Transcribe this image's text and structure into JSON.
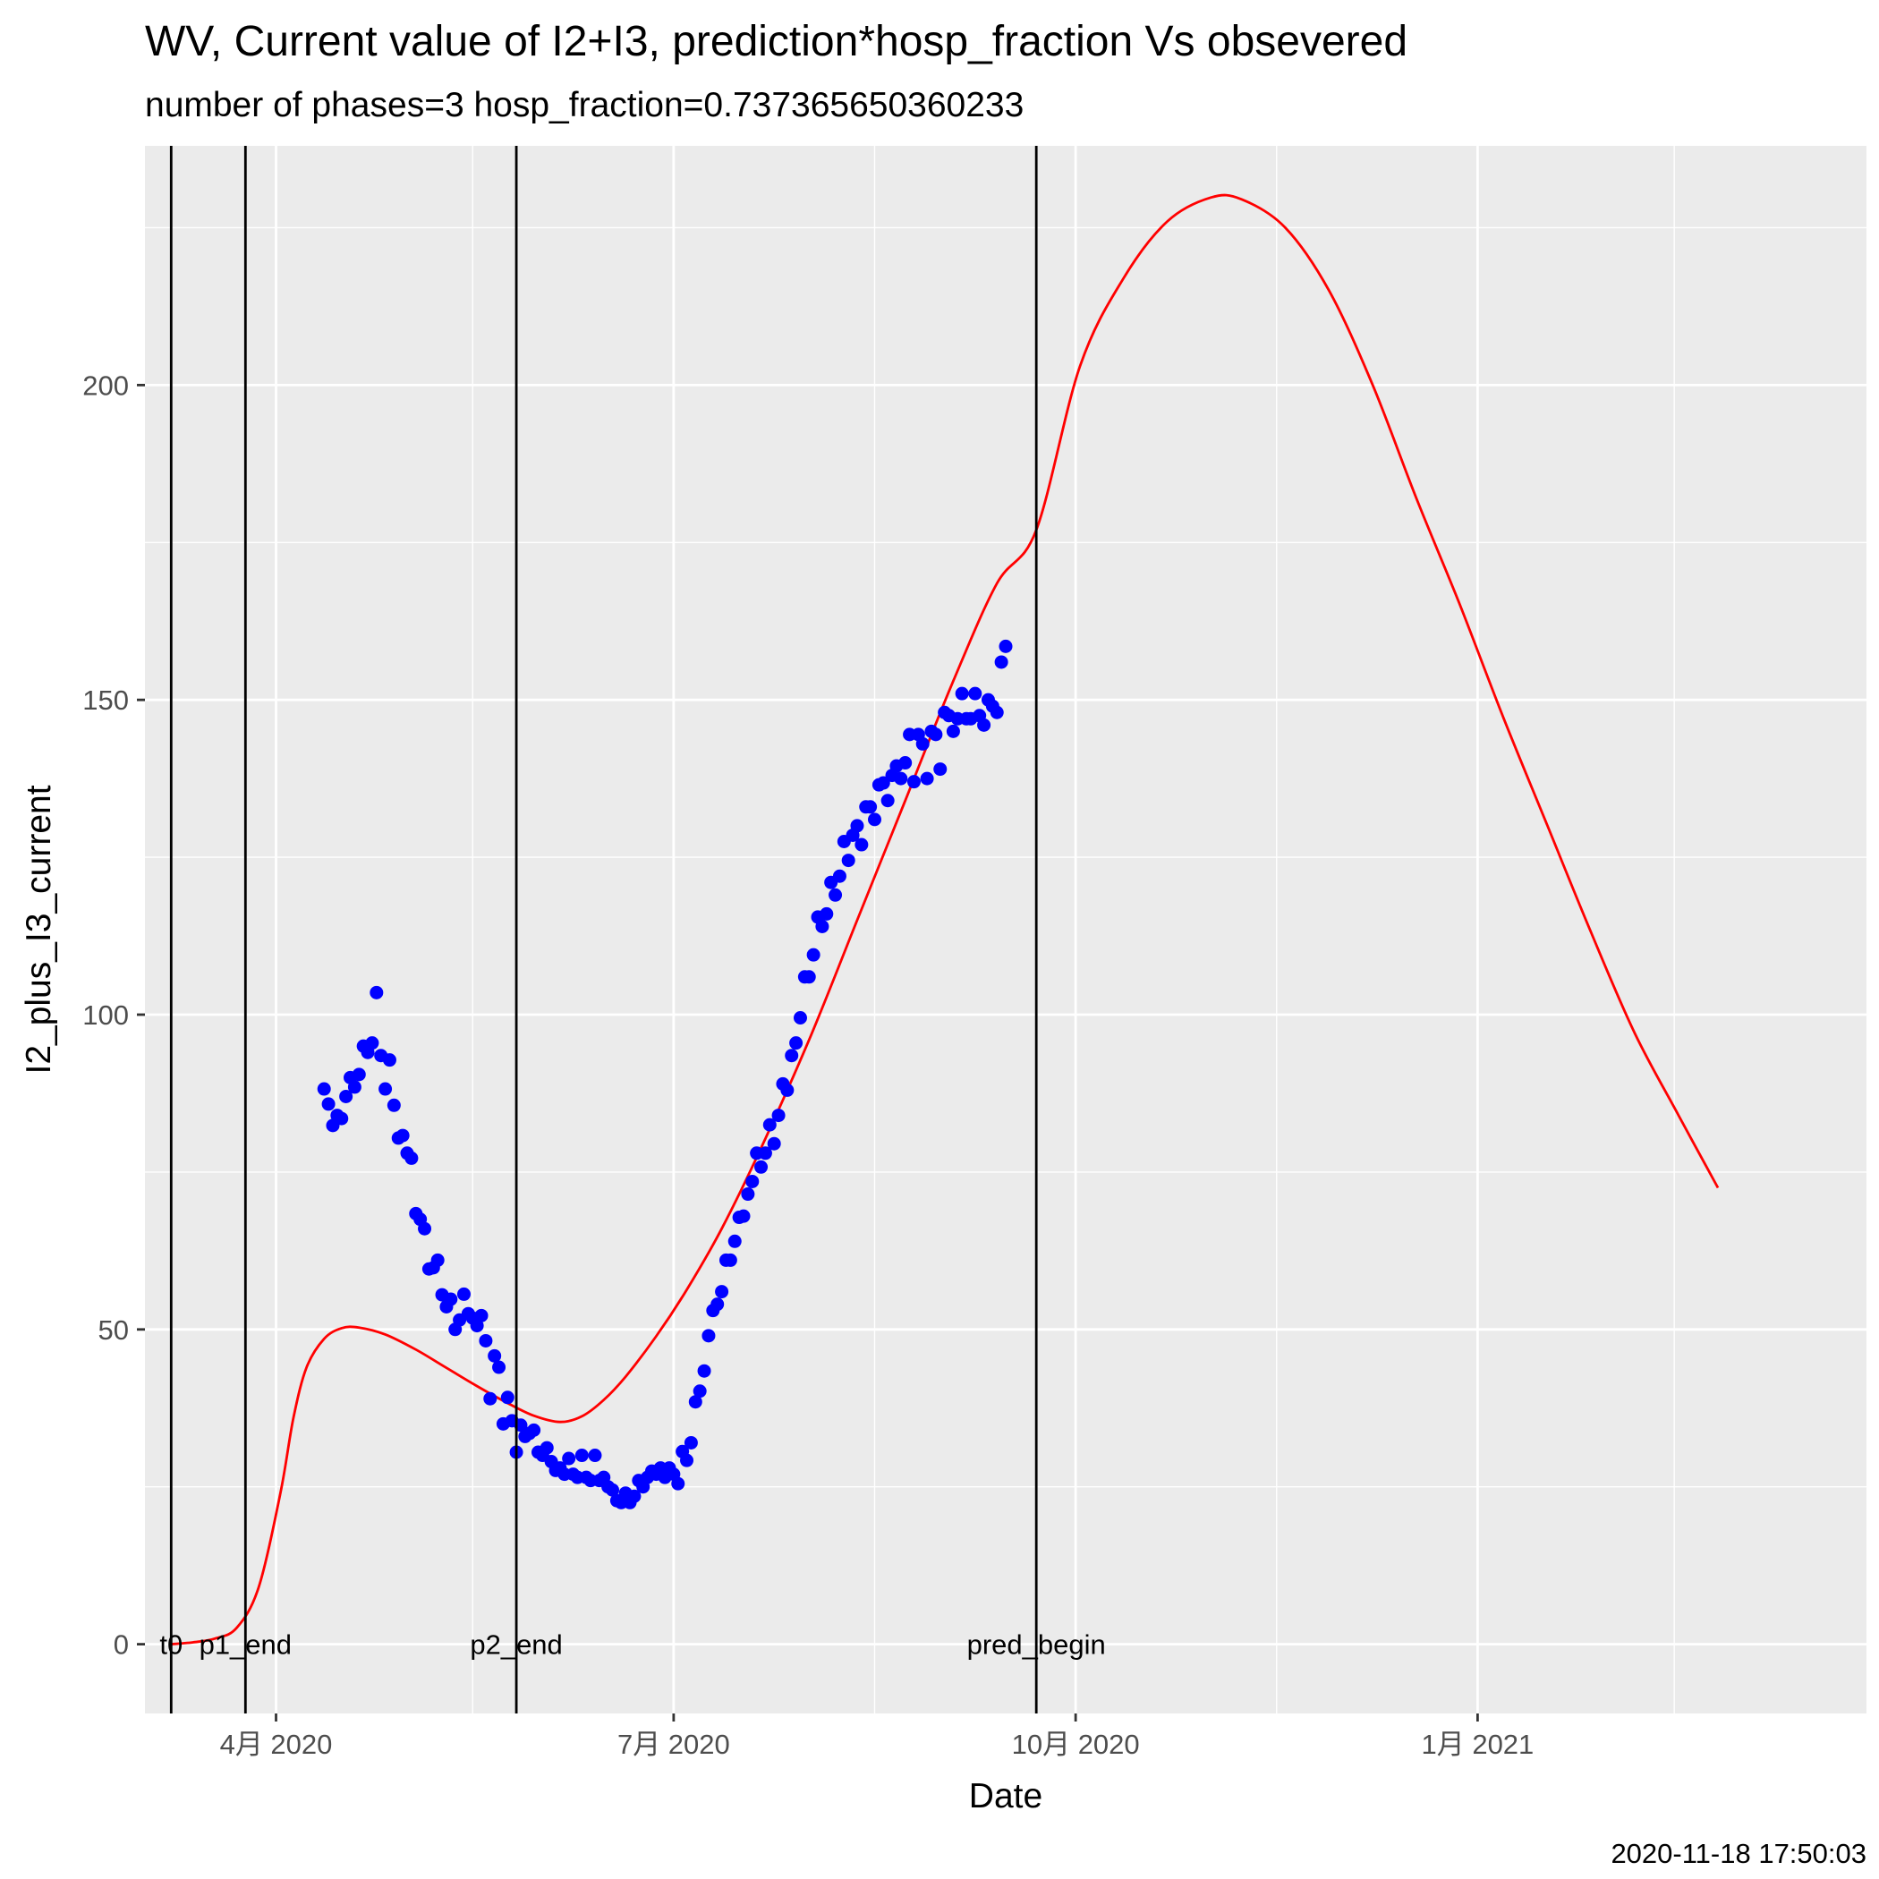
{
  "chart_data": {
    "type": "line",
    "title": "WV, Current value of I2+I3, prediction*hosp_fraction Vs obsevered",
    "subtitle": "number of phases=3   hosp_fraction=0.737365650360233",
    "xlabel": "Date",
    "ylabel": "I2_plus_I3_current",
    "caption": "2020-11-18 17:50:03",
    "xlim": [
      "2020-03-02",
      "2021-03-31"
    ],
    "ylim": [
      -11,
      238
    ],
    "x_ticks": [
      {
        "date": "2020-04-01",
        "label": "4月 2020"
      },
      {
        "date": "2020-07-01",
        "label": "7月 2020"
      },
      {
        "date": "2020-10-01",
        "label": "10月 2020"
      },
      {
        "date": "2021-01-01",
        "label": "1月 2021"
      }
    ],
    "x_minor_ticks": [
      "2020-02-15",
      "2020-05-16",
      "2020-08-16",
      "2020-11-16",
      "2021-02-15"
    ],
    "y_ticks": [
      0,
      50,
      100,
      150,
      200
    ],
    "y_minor_ticks": [
      25,
      75,
      125,
      175,
      225
    ],
    "grid": true,
    "vlines": [
      {
        "date": "2020-03-08",
        "label": "t0"
      },
      {
        "date": "2020-03-25",
        "label": "p1_end"
      },
      {
        "date": "2020-05-26",
        "label": "p2_end"
      },
      {
        "date": "2020-09-22",
        "label": "pred_begin"
      }
    ],
    "series": [
      {
        "kind": "line",
        "color": "#ff0000",
        "points": [
          [
            "2020-03-08",
            0.0
          ],
          [
            "2020-03-13",
            0.3
          ],
          [
            "2020-03-18",
            0.9
          ],
          [
            "2020-03-23",
            2.6
          ],
          [
            "2020-03-28",
            9
          ],
          [
            "2020-04-02",
            24
          ],
          [
            "2020-04-05",
            36
          ],
          [
            "2020-04-08",
            44
          ],
          [
            "2020-04-12",
            48.5
          ],
          [
            "2020-04-16",
            50.2
          ],
          [
            "2020-04-20",
            50.3
          ],
          [
            "2020-04-26",
            49.2
          ],
          [
            "2020-05-03",
            46.8
          ],
          [
            "2020-05-10",
            43.9
          ],
          [
            "2020-05-17",
            41.0
          ],
          [
            "2020-05-24",
            38.3
          ],
          [
            "2020-05-30",
            36.3
          ],
          [
            "2020-06-05",
            35.3
          ],
          [
            "2020-06-10",
            36.2
          ],
          [
            "2020-06-15",
            38.8
          ],
          [
            "2020-06-20",
            42.5
          ],
          [
            "2020-06-27",
            48.9
          ],
          [
            "2020-07-04",
            56.3
          ],
          [
            "2020-07-12",
            66.0
          ],
          [
            "2020-07-21",
            78.8
          ],
          [
            "2020-08-01",
            96.0
          ],
          [
            "2020-08-12",
            115.0
          ],
          [
            "2020-08-23",
            134.0
          ],
          [
            "2020-09-03",
            153.0
          ],
          [
            "2020-09-13",
            168.5
          ],
          [
            "2020-09-22",
            177.0
          ],
          [
            "2020-10-02",
            203.0
          ],
          [
            "2020-10-12",
            217.0
          ],
          [
            "2020-10-22",
            226.0
          ],
          [
            "2020-11-01",
            229.8
          ],
          [
            "2020-11-08",
            229.5
          ],
          [
            "2020-11-18",
            225.0
          ],
          [
            "2020-11-28",
            215.0
          ],
          [
            "2020-12-08",
            200.0
          ],
          [
            "2020-12-18",
            182.0
          ],
          [
            "2020-12-28",
            165.0
          ],
          [
            "2021-01-07",
            147.0
          ],
          [
            "2021-01-17",
            130.0
          ],
          [
            "2021-01-27",
            113.0
          ],
          [
            "2021-02-06",
            97.0
          ],
          [
            "2021-02-16",
            84.0
          ],
          [
            "2021-02-25",
            72.5
          ]
        ]
      },
      {
        "kind": "points",
        "color": "#0000ff",
        "points": [
          [
            "2020-04-12",
            88.2
          ],
          [
            "2020-04-13",
            85.8
          ],
          [
            "2020-04-14",
            82.4
          ],
          [
            "2020-04-15",
            84.0
          ],
          [
            "2020-04-16",
            83.5
          ],
          [
            "2020-04-17",
            87.0
          ],
          [
            "2020-04-18",
            90.0
          ],
          [
            "2020-04-19",
            88.5
          ],
          [
            "2020-04-20",
            90.5
          ],
          [
            "2020-04-21",
            95.0
          ],
          [
            "2020-04-22",
            94.0
          ],
          [
            "2020-04-23",
            95.5
          ],
          [
            "2020-04-24",
            103.5
          ],
          [
            "2020-04-25",
            93.5
          ],
          [
            "2020-04-26",
            88.2
          ],
          [
            "2020-04-27",
            92.8
          ],
          [
            "2020-04-28",
            85.6
          ],
          [
            "2020-04-29",
            80.4
          ],
          [
            "2020-04-30",
            80.8
          ],
          [
            "2020-05-01",
            78.0
          ],
          [
            "2020-05-02",
            77.2
          ],
          [
            "2020-05-03",
            68.4
          ],
          [
            "2020-05-04",
            67.5
          ],
          [
            "2020-05-05",
            66.0
          ],
          [
            "2020-05-06",
            59.6
          ],
          [
            "2020-05-07",
            59.8
          ],
          [
            "2020-05-08",
            61.0
          ],
          [
            "2020-05-09",
            55.5
          ],
          [
            "2020-05-10",
            53.6
          ],
          [
            "2020-05-11",
            54.8
          ],
          [
            "2020-05-12",
            50.0
          ],
          [
            "2020-05-13",
            51.5
          ],
          [
            "2020-05-14",
            55.6
          ],
          [
            "2020-05-15",
            52.5
          ],
          [
            "2020-05-16",
            51.8
          ],
          [
            "2020-05-17",
            50.6
          ],
          [
            "2020-05-18",
            52.2
          ],
          [
            "2020-05-19",
            48.2
          ],
          [
            "2020-05-20",
            39.0
          ],
          [
            "2020-05-21",
            45.8
          ],
          [
            "2020-05-22",
            44.0
          ],
          [
            "2020-05-23",
            35.0
          ],
          [
            "2020-05-24",
            39.2
          ],
          [
            "2020-05-25",
            35.5
          ],
          [
            "2020-05-26",
            30.5
          ],
          [
            "2020-05-27",
            34.8
          ],
          [
            "2020-05-28",
            33.0
          ],
          [
            "2020-05-29",
            33.5
          ],
          [
            "2020-05-30",
            34.0
          ],
          [
            "2020-05-31",
            30.5
          ],
          [
            "2020-06-01",
            30.0
          ],
          [
            "2020-06-02",
            31.2
          ],
          [
            "2020-06-03",
            29.0
          ],
          [
            "2020-06-04",
            27.6
          ],
          [
            "2020-06-05",
            28.0
          ],
          [
            "2020-06-06",
            27.0
          ],
          [
            "2020-06-07",
            29.5
          ],
          [
            "2020-06-08",
            27.0
          ],
          [
            "2020-06-09",
            26.5
          ],
          [
            "2020-06-10",
            30.0
          ],
          [
            "2020-06-11",
            26.5
          ],
          [
            "2020-06-12",
            26.0
          ],
          [
            "2020-06-13",
            30.0
          ],
          [
            "2020-06-14",
            26.0
          ],
          [
            "2020-06-15",
            26.5
          ],
          [
            "2020-06-16",
            25.0
          ],
          [
            "2020-06-17",
            24.5
          ],
          [
            "2020-06-18",
            22.8
          ],
          [
            "2020-06-19",
            22.5
          ],
          [
            "2020-06-20",
            24.0
          ],
          [
            "2020-06-21",
            22.5
          ],
          [
            "2020-06-22",
            23.5
          ],
          [
            "2020-06-23",
            26.0
          ],
          [
            "2020-06-24",
            25.0
          ],
          [
            "2020-06-25",
            26.5
          ],
          [
            "2020-06-26",
            27.5
          ],
          [
            "2020-06-27",
            27.0
          ],
          [
            "2020-06-28",
            28.0
          ],
          [
            "2020-06-29",
            26.5
          ],
          [
            "2020-06-30",
            28.0
          ],
          [
            "2020-07-01",
            27.0
          ],
          [
            "2020-07-02",
            25.5
          ],
          [
            "2020-07-03",
            30.6
          ],
          [
            "2020-07-04",
            29.2
          ],
          [
            "2020-07-05",
            32.0
          ],
          [
            "2020-07-06",
            38.5
          ],
          [
            "2020-07-07",
            40.2
          ],
          [
            "2020-07-08",
            43.4
          ],
          [
            "2020-07-09",
            49.0
          ],
          [
            "2020-07-10",
            53.0
          ],
          [
            "2020-07-11",
            54.0
          ],
          [
            "2020-07-12",
            56.0
          ],
          [
            "2020-07-13",
            61.0
          ],
          [
            "2020-07-14",
            61.0
          ],
          [
            "2020-07-15",
            64.0
          ],
          [
            "2020-07-16",
            67.8
          ],
          [
            "2020-07-17",
            68.0
          ],
          [
            "2020-07-18",
            71.5
          ],
          [
            "2020-07-19",
            73.5
          ],
          [
            "2020-07-20",
            78.0
          ],
          [
            "2020-07-21",
            75.8
          ],
          [
            "2020-07-22",
            78.0
          ],
          [
            "2020-07-23",
            82.5
          ],
          [
            "2020-07-24",
            79.5
          ],
          [
            "2020-07-25",
            84.0
          ],
          [
            "2020-07-26",
            89.0
          ],
          [
            "2020-07-27",
            88.0
          ],
          [
            "2020-07-28",
            93.5
          ],
          [
            "2020-07-29",
            95.5
          ],
          [
            "2020-07-30",
            99.5
          ],
          [
            "2020-07-31",
            106.0
          ],
          [
            "2020-08-01",
            106.0
          ],
          [
            "2020-08-02",
            109.5
          ],
          [
            "2020-08-03",
            115.5
          ],
          [
            "2020-08-04",
            114.0
          ],
          [
            "2020-08-05",
            116.0
          ],
          [
            "2020-08-06",
            121.0
          ],
          [
            "2020-08-07",
            119.0
          ],
          [
            "2020-08-08",
            122.0
          ],
          [
            "2020-08-09",
            127.5
          ],
          [
            "2020-08-10",
            124.5
          ],
          [
            "2020-08-11",
            128.5
          ],
          [
            "2020-08-12",
            130.0
          ],
          [
            "2020-08-13",
            127.0
          ],
          [
            "2020-08-14",
            133.0
          ],
          [
            "2020-08-15",
            133.0
          ],
          [
            "2020-08-16",
            131.0
          ],
          [
            "2020-08-17",
            136.5
          ],
          [
            "2020-08-18",
            136.8
          ],
          [
            "2020-08-19",
            134.0
          ],
          [
            "2020-08-20",
            138.0
          ],
          [
            "2020-08-21",
            139.5
          ],
          [
            "2020-08-22",
            137.5
          ],
          [
            "2020-08-23",
            140.0
          ],
          [
            "2020-08-24",
            144.5
          ],
          [
            "2020-08-25",
            137.0
          ],
          [
            "2020-08-26",
            144.5
          ],
          [
            "2020-08-27",
            143.0
          ],
          [
            "2020-08-28",
            137.5
          ],
          [
            "2020-08-29",
            145.0
          ],
          [
            "2020-08-30",
            144.5
          ],
          [
            "2020-08-31",
            139.0
          ],
          [
            "2020-09-01",
            148.0
          ],
          [
            "2020-09-02",
            147.5
          ],
          [
            "2020-09-03",
            145.0
          ],
          [
            "2020-09-04",
            147.0
          ],
          [
            "2020-09-05",
            151.0
          ],
          [
            "2020-09-06",
            147.0
          ],
          [
            "2020-09-07",
            147.0
          ],
          [
            "2020-09-08",
            151.0
          ],
          [
            "2020-09-09",
            147.5
          ],
          [
            "2020-09-10",
            146.0
          ],
          [
            "2020-09-11",
            150.0
          ],
          [
            "2020-09-12",
            149.0
          ],
          [
            "2020-09-13",
            148.0
          ],
          [
            "2020-09-14",
            156.0
          ],
          [
            "2020-09-15",
            158.5
          ]
        ]
      }
    ]
  }
}
